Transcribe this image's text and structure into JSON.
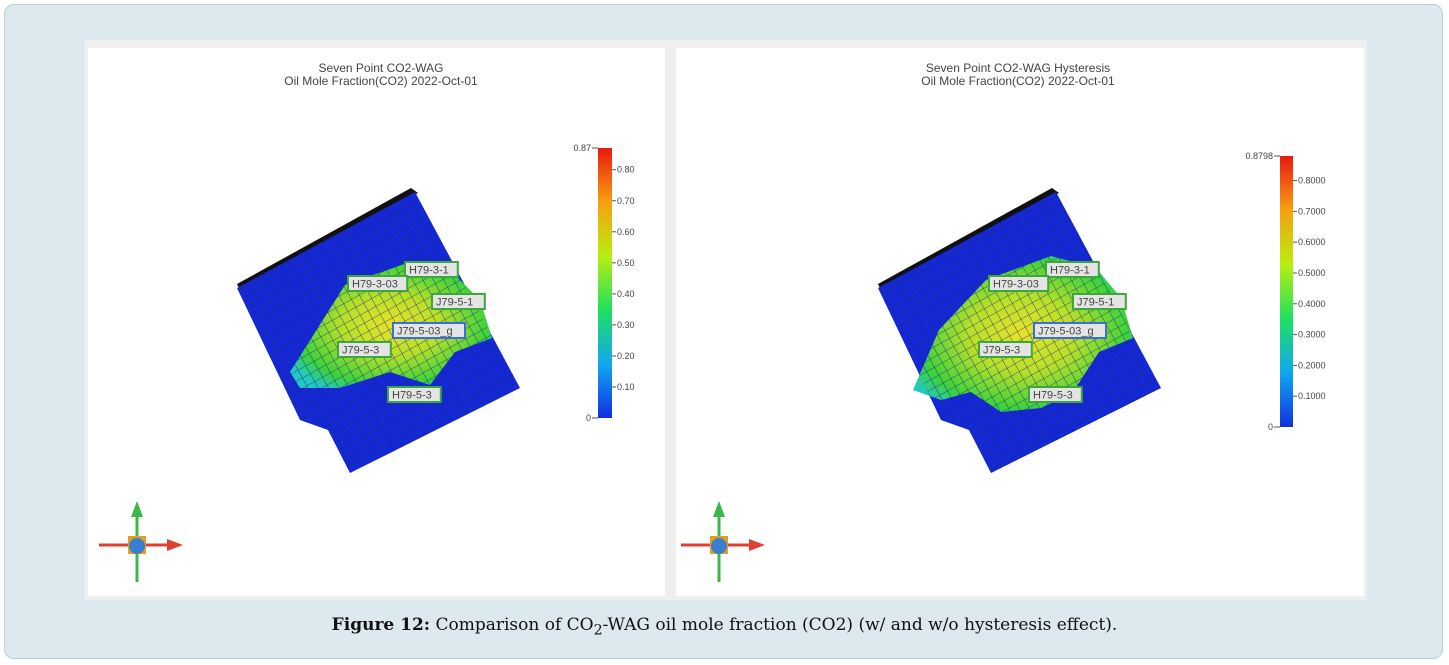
{
  "panels": [
    {
      "title_line1": "Seven Point CO2-WAG",
      "title_line2": "Oil Mole Fraction(CO2)  2022-Oct-01",
      "colorbar_ticks": [
        "0.87",
        "0.80",
        "0.70",
        "0.60",
        "0.50",
        "0.40",
        "0.30",
        "0.20",
        "0.10",
        "0"
      ],
      "wells": [
        "H79-3-1",
        "H79-3-03",
        "J79-5-1",
        "J79-5-03_g",
        "J79-5-3",
        "H79-5-3"
      ]
    },
    {
      "title_line1": "Seven Point CO2-WAG Hysteresis",
      "title_line2": "Oil Mole Fraction(CO2)  2022-Oct-01",
      "colorbar_ticks": [
        "0.8798",
        "0.8000",
        "0.7000",
        "0.6000",
        "0.5000",
        "0.4000",
        "0.3000",
        "0.2000",
        "0.1000",
        "0"
      ],
      "wells": [
        "H79-3-1",
        "H79-3-03",
        "J79-5-1",
        "J79-5-03_g",
        "J79-5-3",
        "H79-5-3"
      ]
    }
  ],
  "caption": {
    "label": "Figure 12:",
    "text_before": "Comparison of CO",
    "subscript": "2",
    "text_after": "-WAG oil mole fraction (CO2) (w/ and w/o hysteresis effect)."
  }
}
